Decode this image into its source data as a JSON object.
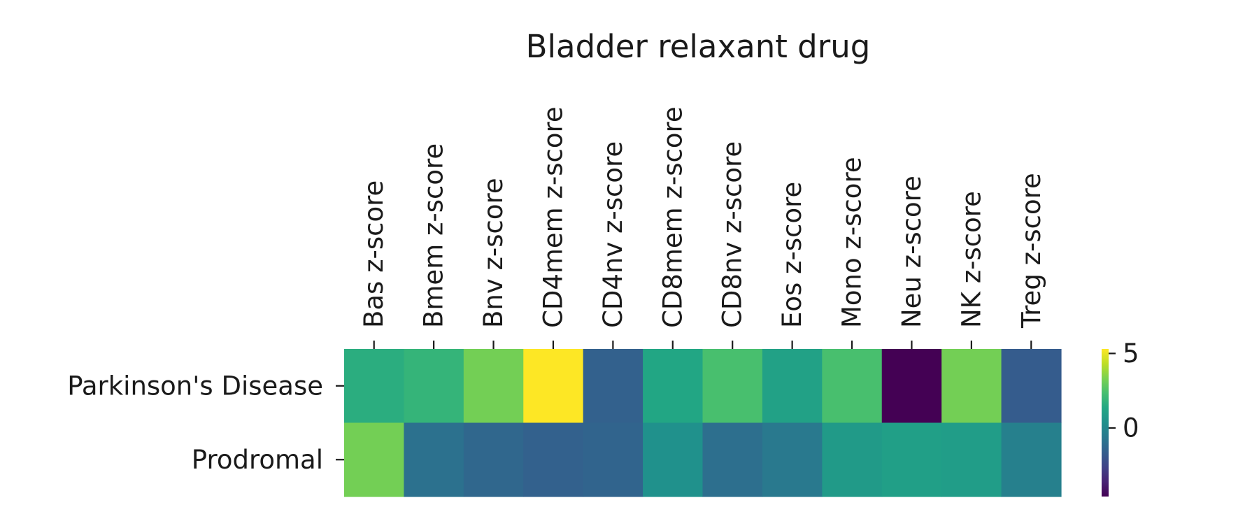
{
  "chart_data": {
    "type": "heatmap",
    "title": "Bladder relaxant drug",
    "xlabel": "",
    "ylabel": "",
    "columns": [
      "Bas z-score",
      "Bmem z-score",
      "Bnv z-score",
      "CD4mem z-score",
      "CD4nv z-score",
      "CD8mem z-score",
      "CD8nv z-score",
      "Eos z-score",
      "Mono z-score",
      "Neu z-score",
      "NK z-score",
      "Treg z-score"
    ],
    "rows": [
      "Parkinson's Disease",
      "Prodromal"
    ],
    "values": [
      [
        1.6,
        1.9,
        3.2,
        5.3,
        -1.5,
        1.3,
        2.4,
        1.1,
        2.4,
        -4.6,
        3.2,
        -1.7
      ],
      [
        3.2,
        -0.9,
        -1.3,
        -1.5,
        -1.4,
        0.4,
        -1.0,
        -0.6,
        0.8,
        1.0,
        0.9,
        -0.3
      ]
    ],
    "colorbar": {
      "min": -4.6,
      "max": 5.3,
      "ticks": [
        5,
        0
      ],
      "colormap": "viridis",
      "position": "right"
    }
  }
}
